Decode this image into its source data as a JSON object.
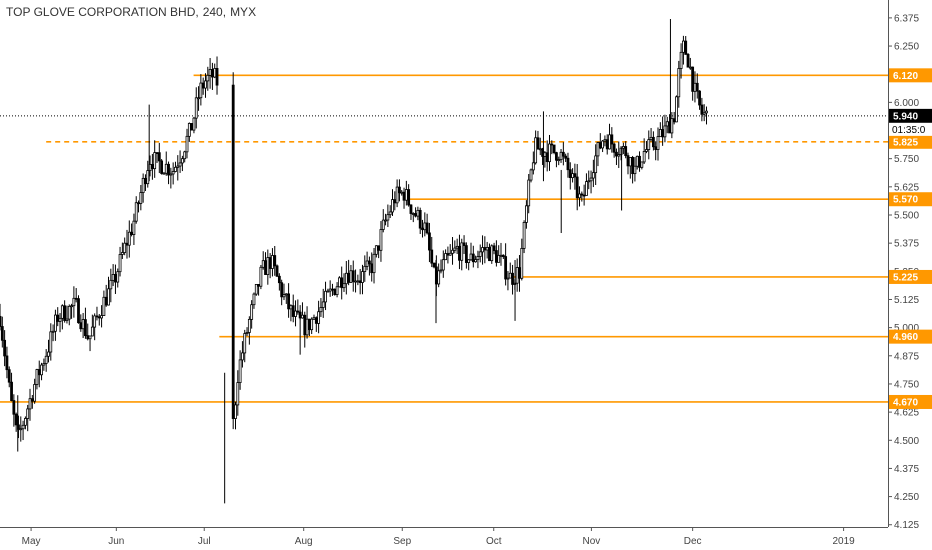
{
  "header": {
    "symbol": "TOP GLOVE CORPORATION BHD,",
    "interval": "240,",
    "exchange": "MYX"
  },
  "chart_data": {
    "type": "candlestick",
    "ylim": [
      4.115,
      6.41
    ],
    "y_ticks": [
      "6.375",
      "6.250",
      "6.125",
      "6.000",
      "5.875",
      "5.750",
      "5.625",
      "5.500",
      "5.375",
      "5.250",
      "5.125",
      "5.000",
      "4.875",
      "4.750",
      "4.625",
      "4.500",
      "4.375",
      "4.250",
      "4.125"
    ],
    "x_ticks": [
      {
        "label": "May",
        "t": 0.035
      },
      {
        "label": "Jun",
        "t": 0.131
      },
      {
        "label": "Jul",
        "t": 0.23
      },
      {
        "label": "Aug",
        "t": 0.342
      },
      {
        "label": "Sep",
        "t": 0.453
      },
      {
        "label": "Oct",
        "t": 0.556
      },
      {
        "label": "Nov",
        "t": 0.666
      },
      {
        "label": "Dec",
        "t": 0.78
      },
      {
        "label": "2019",
        "t": 0.95
      }
    ],
    "last_price": {
      "label": "5.940",
      "value": 5.94,
      "color": "#000000"
    },
    "countdown": "01:35:0",
    "levels": [
      {
        "label": "6.120",
        "value": 6.12,
        "style": "solid",
        "from_t": 0.218,
        "color": "#ff9800"
      },
      {
        "label": "5.825",
        "value": 5.825,
        "style": "dashed",
        "from_t": 0.052,
        "color": "#ff9800"
      },
      {
        "label": "5.570",
        "value": 5.57,
        "style": "solid",
        "from_t": 0.455,
        "color": "#ff9800"
      },
      {
        "label": "5.225",
        "value": 5.225,
        "style": "solid",
        "from_t": 0.575,
        "color": "#ff9800"
      },
      {
        "label": "4.960",
        "value": 4.96,
        "style": "solid",
        "from_t": 0.247,
        "color": "#ff9800"
      },
      {
        "label": "4.670",
        "value": 4.67,
        "style": "solid",
        "from_t": 0.0,
        "color": "#ff9800"
      }
    ],
    "gap": {
      "from_t": 0.245,
      "to_t": 0.262
    },
    "anchors": [
      [
        0.0,
        5.05
      ],
      [
        0.012,
        4.68
      ],
      [
        0.02,
        4.5
      ],
      [
        0.04,
        4.76
      ],
      [
        0.055,
        4.92
      ],
      [
        0.065,
        5.05
      ],
      [
        0.085,
        5.1
      ],
      [
        0.1,
        4.95
      ],
      [
        0.115,
        5.1
      ],
      [
        0.128,
        5.2
      ],
      [
        0.14,
        5.35
      ],
      [
        0.15,
        5.46
      ],
      [
        0.16,
        5.62
      ],
      [
        0.168,
        5.75
      ],
      [
        0.18,
        5.73
      ],
      [
        0.195,
        5.7
      ],
      [
        0.205,
        5.78
      ],
      [
        0.215,
        5.88
      ],
      [
        0.225,
        6.05
      ],
      [
        0.232,
        6.1
      ],
      [
        0.24,
        6.12
      ],
      [
        0.246,
        6.08
      ],
      [
        0.262,
        4.55
      ],
      [
        0.268,
        4.8
      ],
      [
        0.275,
        4.93
      ],
      [
        0.285,
        5.1
      ],
      [
        0.295,
        5.25
      ],
      [
        0.305,
        5.3
      ],
      [
        0.318,
        5.15
      ],
      [
        0.33,
        5.05
      ],
      [
        0.345,
        5.0
      ],
      [
        0.36,
        5.08
      ],
      [
        0.375,
        5.17
      ],
      [
        0.39,
        5.25
      ],
      [
        0.405,
        5.22
      ],
      [
        0.42,
        5.28
      ],
      [
        0.432,
        5.45
      ],
      [
        0.445,
        5.58
      ],
      [
        0.455,
        5.6
      ],
      [
        0.465,
        5.52
      ],
      [
        0.478,
        5.45
      ],
      [
        0.49,
        5.2
      ],
      [
        0.5,
        5.28
      ],
      [
        0.515,
        5.35
      ],
      [
        0.53,
        5.3
      ],
      [
        0.545,
        5.35
      ],
      [
        0.56,
        5.32
      ],
      [
        0.575,
        5.22
      ],
      [
        0.585,
        5.25
      ],
      [
        0.595,
        5.6
      ],
      [
        0.602,
        5.8
      ],
      [
        0.615,
        5.78
      ],
      [
        0.63,
        5.78
      ],
      [
        0.645,
        5.65
      ],
      [
        0.655,
        5.55
      ],
      [
        0.665,
        5.7
      ],
      [
        0.68,
        5.85
      ],
      [
        0.695,
        5.8
      ],
      [
        0.705,
        5.78
      ],
      [
        0.715,
        5.7
      ],
      [
        0.725,
        5.78
      ],
      [
        0.738,
        5.82
      ],
      [
        0.75,
        5.88
      ],
      [
        0.76,
        5.95
      ],
      [
        0.765,
        6.15
      ],
      [
        0.77,
        6.25
      ],
      [
        0.776,
        6.18
      ],
      [
        0.782,
        6.05
      ],
      [
        0.79,
        5.95
      ],
      [
        0.796,
        5.94
      ]
    ]
  }
}
